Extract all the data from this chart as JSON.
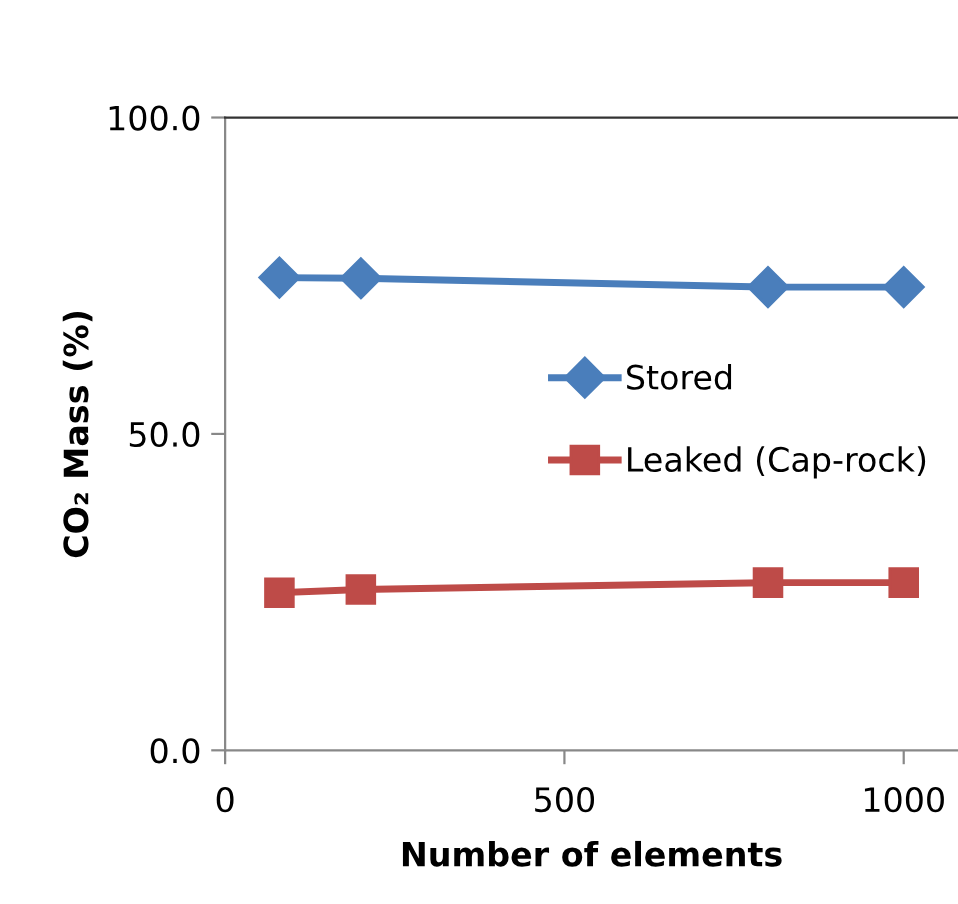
{
  "chart_data": {
    "type": "line",
    "xlabel": "Number of elements",
    "ylabel": "CO₂ Mass (%)",
    "x": [
      80,
      200,
      800,
      1000
    ],
    "series": [
      {
        "name": "Stored",
        "color": "#4a7ebb",
        "marker": "diamond",
        "values": [
          74.7,
          74.6,
          73.2,
          73.2
        ]
      },
      {
        "name": "Leaked (Cap-rock)",
        "color": "#be4b48",
        "marker": "square",
        "values": [
          24.9,
          25.4,
          26.5,
          26.5
        ]
      }
    ],
    "xlim": [
      0,
      1080
    ],
    "xticks": [
      0,
      500,
      1000
    ],
    "ylim": [
      0,
      100
    ],
    "yticks": [
      {
        "value": 0,
        "label": "0.0"
      },
      {
        "value": 50,
        "label": "50.0"
      },
      {
        "value": 100,
        "label": "100.0"
      }
    ],
    "grid": false,
    "legend": "right",
    "line_style": "solid"
  }
}
